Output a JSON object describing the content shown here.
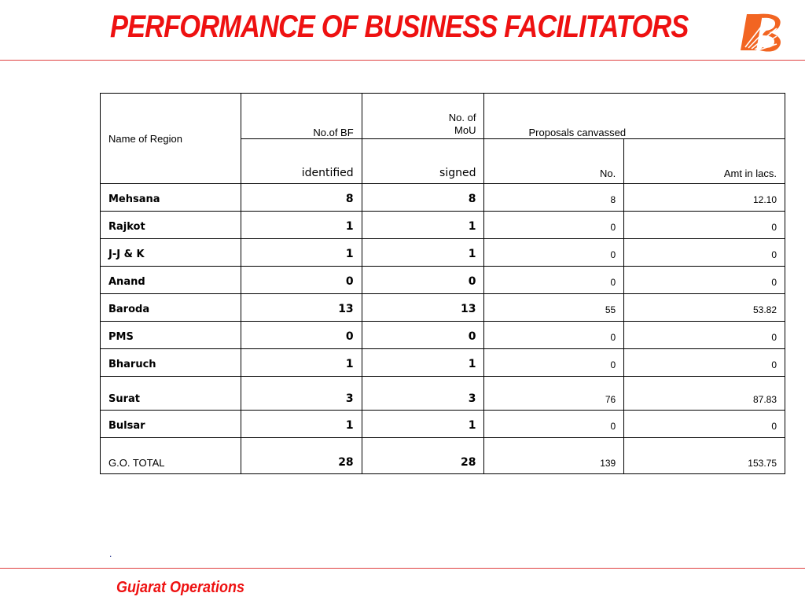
{
  "title": "PERFORMANCE OF BUSINESS FACILITATORS",
  "logo": {
    "icon": "bank-of-baroda-logo-icon",
    "color": "#f26522"
  },
  "footer": "Gujarat Operations",
  "footnote": ".",
  "colors": {
    "accent": "#ee1111",
    "rule": "#e04040",
    "grid": "#000000"
  },
  "table": {
    "header": {
      "region": "Name of Region",
      "bf_top": "No.of BF",
      "bf_bottom": "identified",
      "mou_top_line1": "No. of",
      "mou_top_line2": "MoU",
      "mou_bottom": "signed",
      "proposals": "Proposals canvassed",
      "no": "No.",
      "amt": "Amt in lacs."
    },
    "rows": [
      {
        "region": "Mehsana",
        "bf": "8",
        "mou": "8",
        "no": "8",
        "amt": "12.10"
      },
      {
        "region": "Rajkot",
        "bf": "1",
        "mou": "1",
        "no": "0",
        "amt": "0"
      },
      {
        "region": "J-J & K",
        "bf": "1",
        "mou": "1",
        "no": "0",
        "amt": "0"
      },
      {
        "region": "Anand",
        "bf": "0",
        "mou": "0",
        "no": "0",
        "amt": "0"
      },
      {
        "region": "Baroda",
        "bf": "13",
        "mou": "13",
        "no": "55",
        "amt": "53.82"
      },
      {
        "region": "PMS",
        "bf": "0",
        "mou": "0",
        "no": "0",
        "amt": "0"
      },
      {
        "region": "Bharuch",
        "bf": "1",
        "mou": "1",
        "no": "0",
        "amt": "0"
      },
      {
        "region": "Surat",
        "bf": "3",
        "mou": "3",
        "no": "76",
        "amt": "87.83"
      },
      {
        "region": "Bulsar",
        "bf": "1",
        "mou": "1",
        "no": "0",
        "amt": "0"
      }
    ],
    "total": {
      "region": "G.O. TOTAL",
      "bf": "28",
      "mou": "28",
      "no": "139",
      "amt": "153.75"
    }
  }
}
